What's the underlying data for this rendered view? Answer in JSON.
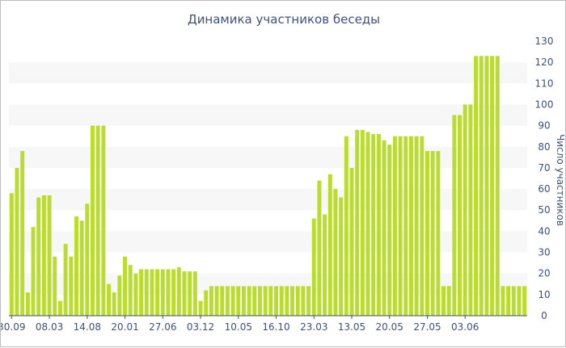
{
  "chart_data": {
    "type": "bar",
    "title": "Динамика участников беседы",
    "xlabel": "",
    "ylabel": "Число участников",
    "ylim": [
      0,
      130
    ],
    "yticks": [
      0,
      10,
      20,
      30,
      40,
      50,
      60,
      70,
      80,
      90,
      100,
      110,
      120,
      130
    ],
    "y_axis_side": "right",
    "grid": "alternating horizontal bands",
    "xtick_labels": [
      "30.09",
      "08.03",
      "14.08",
      "20.01",
      "27.06",
      "03.12",
      "10.05",
      "16.10",
      "23.03",
      "13.05",
      "20.05",
      "27.05",
      "03.06"
    ],
    "xtick_positions": [
      0,
      7,
      14,
      21,
      28,
      35,
      42,
      49,
      56,
      63,
      70,
      77,
      84
    ],
    "bar_color": "#b9dc2d",
    "series": [
      {
        "values": [
          58,
          70,
          78,
          11,
          42,
          56,
          57,
          57,
          28,
          7,
          34,
          28,
          47,
          45,
          53,
          90,
          90,
          90,
          15,
          11,
          19,
          28,
          24,
          20,
          22,
          22,
          22,
          22,
          22,
          22,
          22,
          23,
          21,
          21,
          21,
          7,
          12,
          14,
          14,
          14,
          14,
          14,
          14,
          14,
          14,
          14,
          14,
          14,
          14,
          14,
          14,
          14,
          14,
          14,
          14,
          14,
          46,
          64,
          48,
          67,
          60,
          56,
          85,
          70,
          88,
          88,
          87,
          86,
          86,
          83,
          81,
          85,
          85,
          85,
          85,
          85,
          85,
          78,
          78,
          78,
          14,
          14,
          95,
          95,
          100,
          100,
          123,
          123,
          123,
          123,
          123,
          14,
          14,
          14,
          14,
          14
        ]
      }
    ]
  }
}
